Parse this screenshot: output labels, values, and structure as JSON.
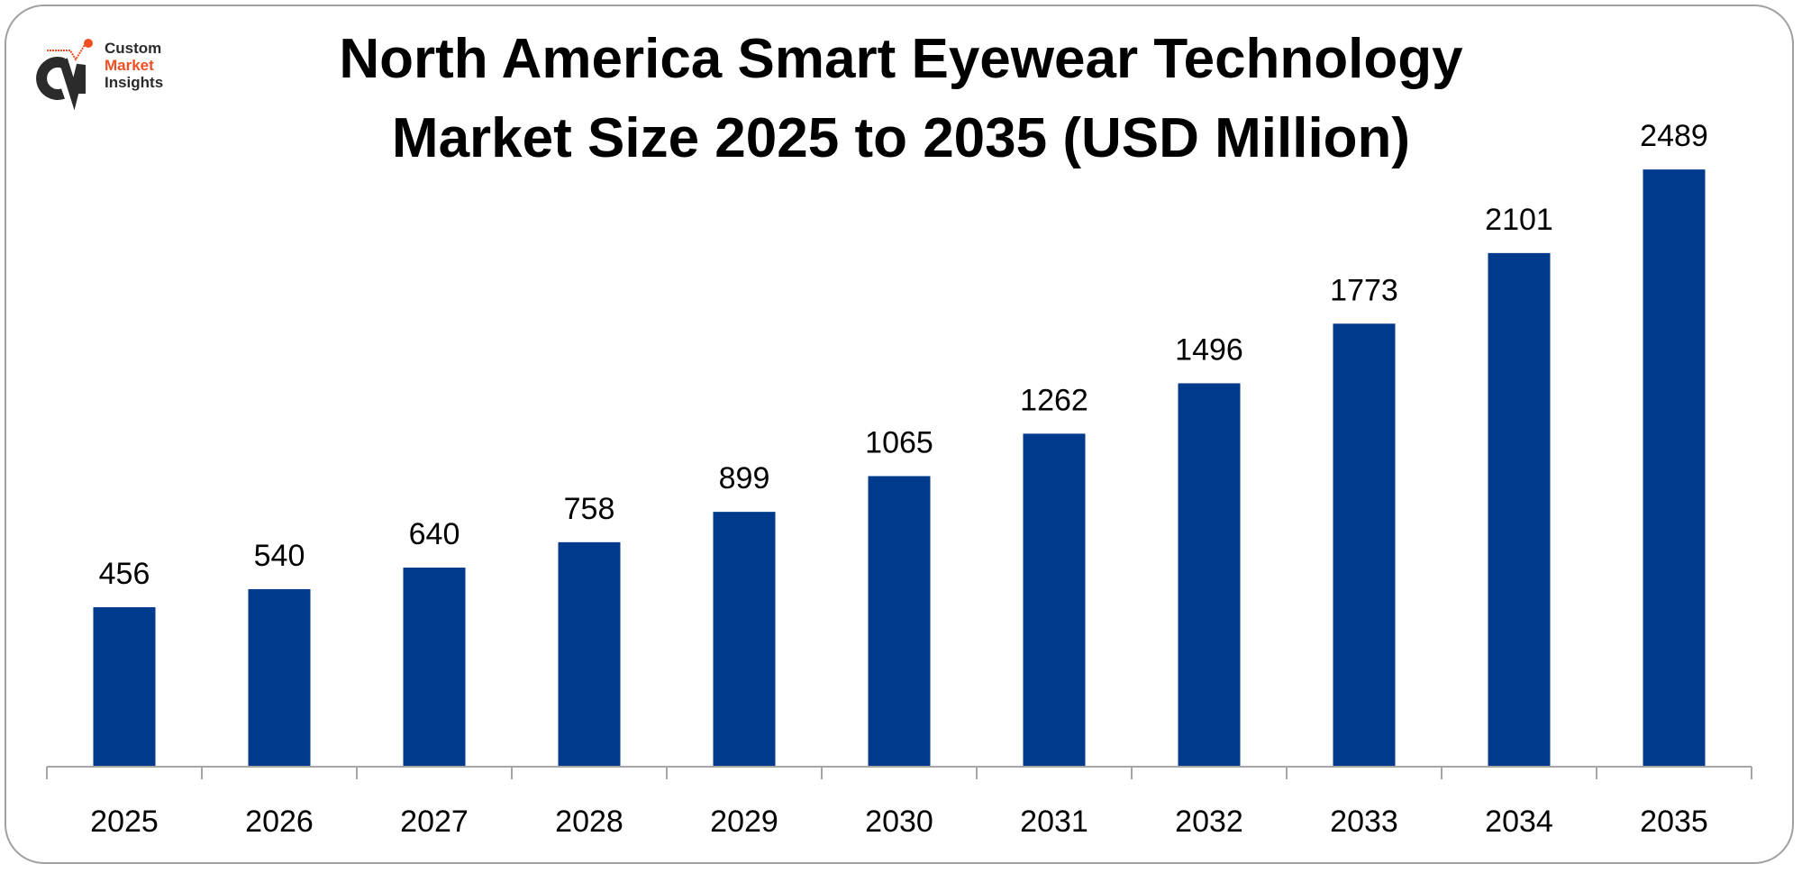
{
  "logo": {
    "line1": "Custom",
    "line2": "Market",
    "line3": "Insights",
    "brand_dark": "#2b2b2b",
    "brand_accent": "#f04e23"
  },
  "chart_data": {
    "type": "bar",
    "title_line1": "North America Smart Eyewear Technology",
    "title_line2": "Market Size 2025 to 2035 (USD Million)",
    "categories": [
      "2025",
      "2026",
      "2027",
      "2028",
      "2029",
      "2030",
      "2031",
      "2032",
      "2033",
      "2034",
      "2035"
    ],
    "values": [
      456,
      540,
      640,
      758,
      899,
      1065,
      1262,
      1496,
      1773,
      2101,
      2489
    ],
    "xlabel": "",
    "ylabel": "",
    "grid": false,
    "data_labels": true,
    "bar_color": "#003a8c"
  }
}
